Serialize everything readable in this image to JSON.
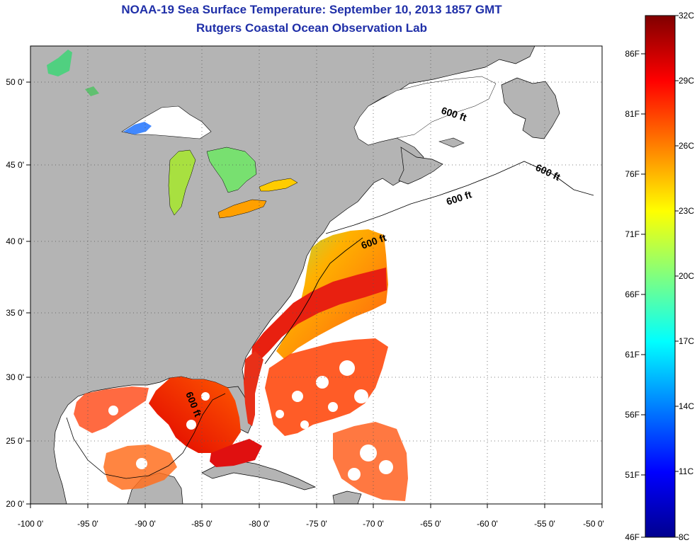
{
  "header": {
    "title": "NOAA-19 Sea Surface Temperature:  September 10, 2013 1857 GMT",
    "subtitle": "Rutgers Coastal Ocean Observation Lab"
  },
  "map": {
    "lon_range": [
      -100,
      -50
    ],
    "lat_range": [
      20,
      52.5
    ],
    "x_ticks": [
      "-100 0'",
      "-95 0'",
      "-90 0'",
      "-85 0'",
      "-80 0'",
      "-75 0'",
      "-70 0'",
      "-65 0'",
      "-60 0'",
      "-55 0'",
      "-50 0'"
    ],
    "y_ticks": [
      "20 0'",
      "25 0'",
      "30 0'",
      "35 0'",
      "40 0'",
      "45 0'",
      "50 0'"
    ],
    "grid": "dotted",
    "contour_labels": [
      "600 ft",
      "600 ft",
      "600 ft",
      "600 ft",
      "600 ft"
    ],
    "colors": {
      "land": "#b4b4b4",
      "ocean_nodata": "#ffffff"
    }
  },
  "colorbar": {
    "celsius_labels": [
      "32C",
      "29C",
      "26C",
      "23C",
      "20C",
      "17C",
      "14C",
      "11C",
      "8C"
    ],
    "fahrenheit_labels": [
      "86F",
      "81F",
      "76F",
      "71F",
      "66F",
      "61F",
      "56F",
      "51F",
      "46F"
    ],
    "range_c": [
      8,
      32
    ]
  }
}
